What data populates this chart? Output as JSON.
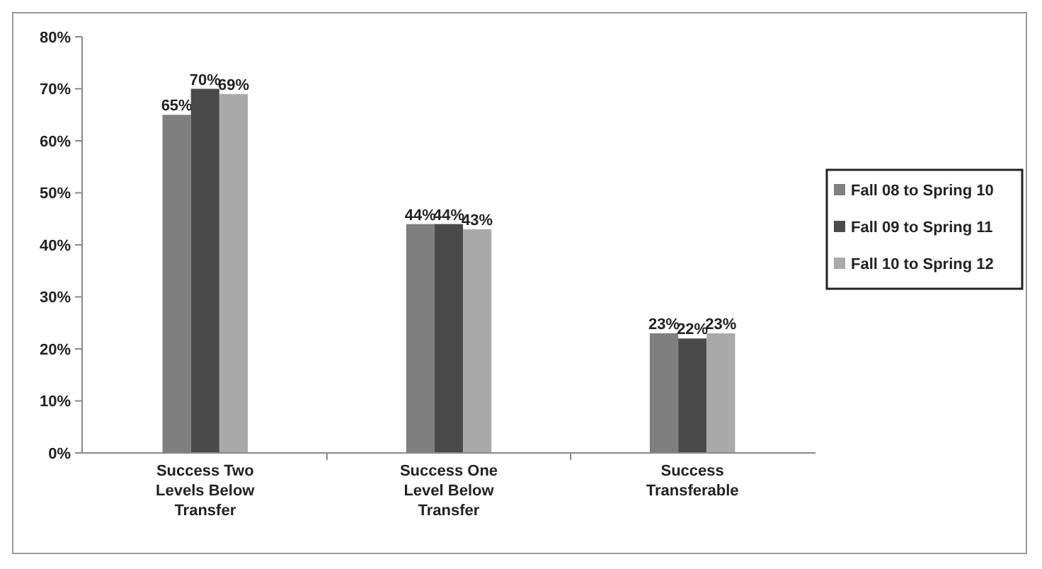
{
  "chart_data": {
    "type": "bar",
    "categories": [
      "Success Two Levels Below Transfer",
      "Success One Level Below Transfer",
      "Success Transferable"
    ],
    "series": [
      {
        "name": "Fall 08 to Spring 10",
        "color": "#7f7f7f",
        "values": [
          65,
          44,
          23
        ],
        "value_labels": [
          "65%",
          "44%",
          "23%"
        ]
      },
      {
        "name": "Fall 09 to Spring 11",
        "color": "#4a4a4a",
        "values": [
          70,
          44,
          22
        ],
        "value_labels": [
          "70%",
          "44%",
          "22%"
        ]
      },
      {
        "name": "Fall 10 to Spring 12",
        "color": "#a9a9a9",
        "values": [
          69,
          43,
          23
        ],
        "value_labels": [
          "69%",
          "43%",
          "23%"
        ]
      }
    ],
    "ylim": [
      0,
      80
    ],
    "yticks": [
      {
        "value": 0,
        "label": "0%"
      },
      {
        "value": 10,
        "label": "10%"
      },
      {
        "value": 20,
        "label": "20%"
      },
      {
        "value": 30,
        "label": "30%"
      },
      {
        "value": 40,
        "label": "40%"
      },
      {
        "value": 50,
        "label": "50%"
      },
      {
        "value": 60,
        "label": "60%"
      },
      {
        "value": 70,
        "label": "70%"
      },
      {
        "value": 80,
        "label": "80%"
      }
    ],
    "grid": false,
    "legend": "right"
  }
}
